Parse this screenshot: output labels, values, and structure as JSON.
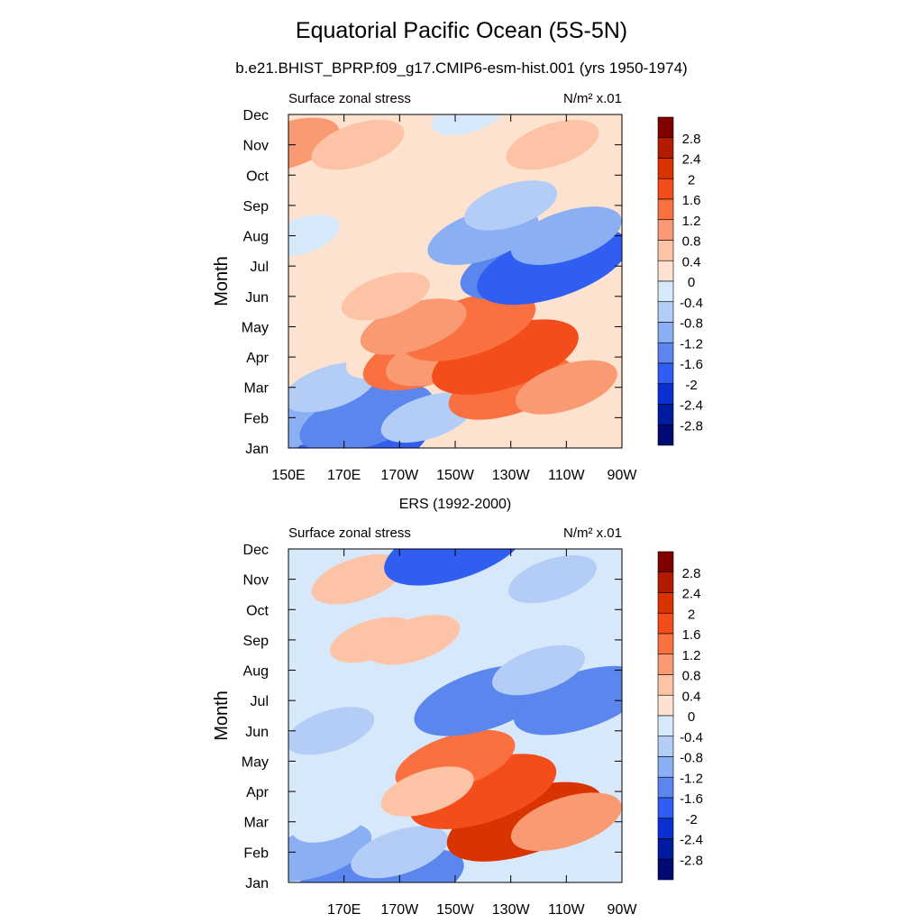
{
  "page": {
    "title": "Equatorial Pacific Ocean (5S-5N)",
    "subtitle": "b.e21.BHIST_BPRP.f09_g17.CMIP6-esm-hist.001 (yrs 1950-1974)"
  },
  "colorbar": {
    "labels": [
      "2.8",
      "2.4",
      "2",
      "1.6",
      "1.2",
      "0.8",
      "0.4",
      "0",
      "-0.4",
      "-0.8",
      "-1.2",
      "-1.6",
      "-2",
      "-2.4",
      "-2.8"
    ],
    "colors": [
      "#7f0000",
      "#b31a00",
      "#d93300",
      "#f24d1a",
      "#fa7040",
      "#f99a72",
      "#fcc3a6",
      "#fde3cf",
      "#d8e8fb",
      "#b4cdf7",
      "#8aaff2",
      "#5b86ee",
      "#2f5ef0",
      "#0b2fd1",
      "#001c9e",
      "#000a70"
    ]
  },
  "chart_data": [
    {
      "type": "heatmap",
      "panel_title": "",
      "left_label": "Surface zonal stress",
      "right_label": "N/m² x.01",
      "ylabel": "Month",
      "x_ticks": [
        "150E",
        "170E",
        "170W",
        "150W",
        "130W",
        "110W",
        "90W"
      ],
      "x_range": [
        "150E",
        "90W"
      ],
      "y_ticks": [
        "Jan",
        "Feb",
        "Mar",
        "Apr",
        "May",
        "Jun",
        "Jul",
        "Aug",
        "Sep",
        "Oct",
        "Nov",
        "Dec"
      ],
      "levels": [
        -2.8,
        -2.4,
        -2,
        -1.6,
        -1.2,
        -0.8,
        -0.4,
        0,
        0.4,
        0.8,
        1.2,
        1.6,
        2,
        2.4,
        2.8
      ],
      "features": [
        {
          "lon": 205,
          "month": "Jun",
          "value": 0.1
        },
        {
          "lon": 160,
          "month": "Jan",
          "value": -1.2
        },
        {
          "lon": 175,
          "month": "Jan",
          "value": -1.7
        },
        {
          "lon": 160,
          "month": "Feb",
          "value": -0.9
        },
        {
          "lon": 178,
          "month": "Feb",
          "value": -1.5
        },
        {
          "lon": 200,
          "month": "Feb",
          "value": -0.6
        },
        {
          "lon": 165,
          "month": "Mar",
          "value": -0.6
        },
        {
          "lon": 185,
          "month": "Apr",
          "value": 0.3
        },
        {
          "lon": 200,
          "month": "Apr",
          "value": 1.4
        },
        {
          "lon": 205,
          "month": "Apr",
          "value": 1.0
        },
        {
          "lon": 230,
          "month": "Mar",
          "value": 1.3
        },
        {
          "lon": 228,
          "month": "Apr",
          "value": 1.8
        },
        {
          "lon": 250,
          "month": "Mar",
          "value": 0.8
        },
        {
          "lon": 215,
          "month": "May",
          "value": 1.5
        },
        {
          "lon": 195,
          "month": "May",
          "value": 0.9
        },
        {
          "lon": 185,
          "month": "Jun",
          "value": 0.5
        },
        {
          "lon": 235,
          "month": "Jul",
          "value": -1.4
        },
        {
          "lon": 245,
          "month": "Jul",
          "value": -1.9
        },
        {
          "lon": 220,
          "month": "Aug",
          "value": -1.0
        },
        {
          "lon": 250,
          "month": "Aug",
          "value": -1.0
        },
        {
          "lon": 230,
          "month": "Sep",
          "value": -0.6
        },
        {
          "lon": 155,
          "month": "Aug",
          "value": -0.2
        },
        {
          "lon": 150,
          "month": "Nov",
          "value": 0.8
        },
        {
          "lon": 175,
          "month": "Nov",
          "value": 0.6
        },
        {
          "lon": 245,
          "month": "Nov",
          "value": 0.6
        },
        {
          "lon": 215,
          "month": "Dec",
          "value": -0.2
        }
      ]
    },
    {
      "type": "heatmap",
      "panel_title": "ERS (1992-2000)",
      "left_label": "Surface zonal stress",
      "right_label": "N/m² x.01",
      "ylabel": "Month",
      "x_ticks": [
        "170E",
        "170W",
        "150W",
        "130W",
        "110W",
        "90W"
      ],
      "x_range": [
        "150E",
        "90W"
      ],
      "y_ticks": [
        "Jan",
        "Feb",
        "Mar",
        "Apr",
        "May",
        "Jun",
        "Jul",
        "Aug",
        "Sep",
        "Oct",
        "Nov",
        "Dec"
      ],
      "levels": [
        -2.8,
        -2.4,
        -2,
        -1.6,
        -1.2,
        -0.8,
        -0.4,
        0,
        0.4,
        0.8,
        1.2,
        1.6,
        2,
        2.4,
        2.8
      ],
      "features": [
        {
          "lon": 200,
          "month": "Jun",
          "value": -0.1
        },
        {
          "lon": 175,
          "month": "Jan",
          "value": -1.6
        },
        {
          "lon": 190,
          "month": "Jan",
          "value": -1.4
        },
        {
          "lon": 160,
          "month": "Feb",
          "value": -1.0
        },
        {
          "lon": 190,
          "month": "Feb",
          "value": -0.7
        },
        {
          "lon": 165,
          "month": "Mar",
          "value": -0.2
        },
        {
          "lon": 235,
          "month": "Mar",
          "value": 2.0
        },
        {
          "lon": 220,
          "month": "Apr",
          "value": 1.8
        },
        {
          "lon": 210,
          "month": "May",
          "value": 1.2
        },
        {
          "lon": 250,
          "month": "Mar",
          "value": 1.0
        },
        {
          "lon": 200,
          "month": "Apr",
          "value": 0.6
        },
        {
          "lon": 165,
          "month": "Jun",
          "value": -0.5
        },
        {
          "lon": 220,
          "month": "Jul",
          "value": -1.6
        },
        {
          "lon": 255,
          "month": "Jul",
          "value": -1.5
        },
        {
          "lon": 240,
          "month": "Aug",
          "value": -0.6
        },
        {
          "lon": 180,
          "month": "Sep",
          "value": 0.4
        },
        {
          "lon": 195,
          "month": "Sep",
          "value": 0.6
        },
        {
          "lon": 175,
          "month": "Nov",
          "value": 0.6
        },
        {
          "lon": 215,
          "month": "Nov",
          "value": -0.4
        },
        {
          "lon": 245,
          "month": "Nov",
          "value": -0.5
        },
        {
          "lon": 210,
          "month": "Dec",
          "value": -1.7
        }
      ]
    }
  ]
}
